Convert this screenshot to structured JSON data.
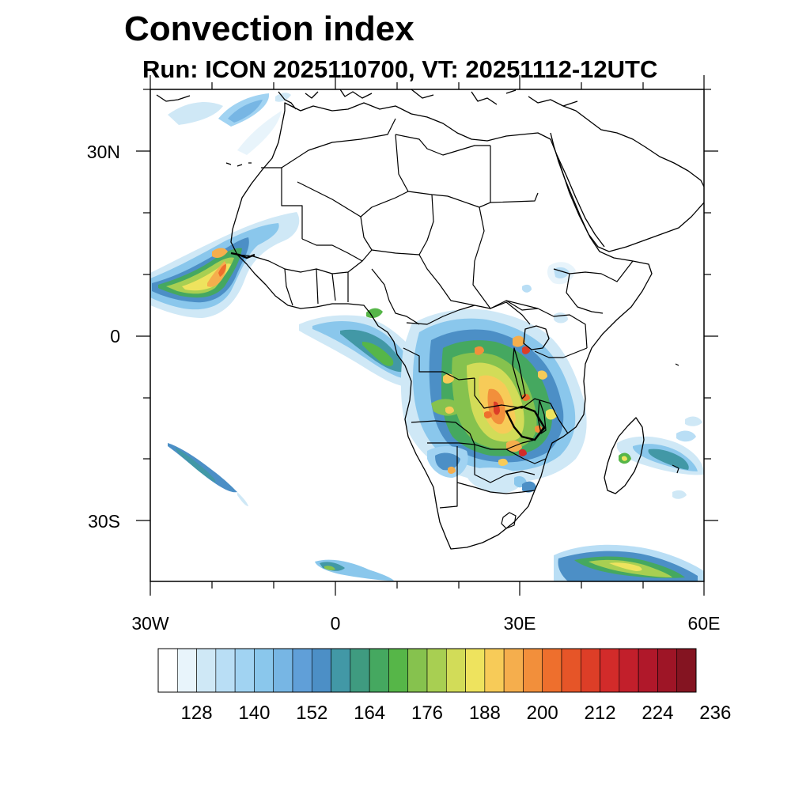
{
  "title": "Convection index",
  "subtitle": "Run: ICON 2025110700,  VT: 20251112-12UTC",
  "axes": {
    "y_labels": [
      "30N",
      "0",
      "30S"
    ],
    "x_labels": [
      "30W",
      "0",
      "30E",
      "60E"
    ]
  },
  "colorbar": {
    "labels": [
      "128",
      "140",
      "152",
      "164",
      "176",
      "188",
      "200",
      "212",
      "224",
      "236"
    ],
    "colors": [
      "#ffffff",
      "#e8f4fb",
      "#cfe8f6",
      "#b9def5",
      "#a1d3f2",
      "#8ac7ec",
      "#77b6e4",
      "#609fd8",
      "#4c8fc6",
      "#4298a6",
      "#3f9b80",
      "#45a860",
      "#56b648",
      "#86c24e",
      "#a8cf52",
      "#d2dc58",
      "#eee35e",
      "#f7cb58",
      "#f5ae4d",
      "#f28f3b",
      "#ee6f2d",
      "#e65528",
      "#dd3e27",
      "#d22b2a",
      "#c21f2b",
      "#b0182a",
      "#9e1526",
      "#841421"
    ]
  },
  "colors": {
    "land_outline": "#000000",
    "ocean": "#ffffff"
  }
}
